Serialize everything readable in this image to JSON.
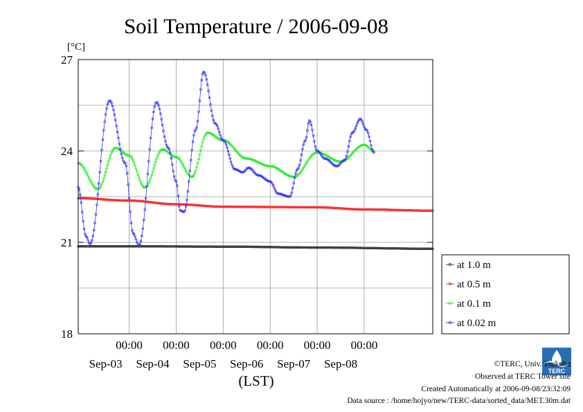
{
  "chart_data": {
    "type": "line",
    "title": "Soil Temperature / 2006-09-08",
    "ylabel": "[°C]",
    "xlabel": "(LST)",
    "ylim": [
      18,
      27
    ],
    "yticks": [
      18,
      21,
      24,
      27
    ],
    "xlim_hours": [
      -26,
      155
    ],
    "midnight_ticks": [
      {
        "hour": 0,
        "time": "00:00",
        "date": "Sep-03"
      },
      {
        "hour": 24,
        "time": "00:00",
        "date": "Sep-04"
      },
      {
        "hour": 48,
        "time": "00:00",
        "date": "Sep-05"
      },
      {
        "hour": 72,
        "time": "00:00",
        "date": "Sep-06"
      },
      {
        "hour": 96,
        "time": "00:00",
        "date": "Sep-07"
      },
      {
        "hour": 120,
        "time": "00:00",
        "date": "Sep-08"
      }
    ],
    "grid": true,
    "legend_position": "right",
    "series": [
      {
        "name": "at 1.0 m",
        "color": "#333333",
        "points": [
          [
            -26,
            20.87
          ],
          [
            0,
            20.87
          ],
          [
            48,
            20.86
          ],
          [
            96,
            20.83
          ],
          [
            155,
            20.79
          ]
        ]
      },
      {
        "name": "at 0.5 m",
        "color": "#ff2222",
        "points": [
          [
            -26,
            22.45
          ],
          [
            0,
            22.37
          ],
          [
            24,
            22.25
          ],
          [
            48,
            22.17
          ],
          [
            72,
            22.16
          ],
          [
            96,
            22.15
          ],
          [
            120,
            22.08
          ],
          [
            155,
            22.04
          ]
        ]
      },
      {
        "name": "at 0.1 m",
        "color": "#22ee22",
        "points": [
          [
            -26,
            23.6
          ],
          [
            -16,
            22.75
          ],
          [
            -7,
            24.1
          ],
          [
            0,
            23.85
          ],
          [
            8,
            22.8
          ],
          [
            17,
            24.05
          ],
          [
            24,
            23.8
          ],
          [
            32,
            23.15
          ],
          [
            40,
            24.6
          ],
          [
            48,
            24.35
          ],
          [
            60,
            23.75
          ],
          [
            72,
            23.5
          ],
          [
            84,
            23.15
          ],
          [
            96,
            23.95
          ],
          [
            108,
            23.65
          ],
          [
            120,
            24.2
          ],
          [
            125,
            24.0
          ]
        ]
      },
      {
        "name": "at 0.02 m",
        "color": "#3333ff",
        "points": [
          [
            -26,
            22.8
          ],
          [
            -22,
            21.2
          ],
          [
            -20,
            20.95
          ],
          [
            -10,
            25.65
          ],
          [
            -2,
            23.6
          ],
          [
            2,
            21.3
          ],
          [
            5,
            20.9
          ],
          [
            14,
            25.6
          ],
          [
            20,
            24.1
          ],
          [
            24,
            23.0
          ],
          [
            26,
            22.05
          ],
          [
            28,
            22.0
          ],
          [
            34,
            24.7
          ],
          [
            38,
            26.6
          ],
          [
            44,
            24.9
          ],
          [
            48,
            24.35
          ],
          [
            54,
            23.4
          ],
          [
            58,
            23.3
          ],
          [
            61,
            23.45
          ],
          [
            66,
            23.2
          ],
          [
            72,
            23.0
          ],
          [
            76,
            22.6
          ],
          [
            82,
            22.5
          ],
          [
            86,
            23.4
          ],
          [
            90,
            24.35
          ],
          [
            92,
            25.0
          ],
          [
            96,
            24.0
          ],
          [
            100,
            23.75
          ],
          [
            106,
            23.5
          ],
          [
            110,
            23.7
          ],
          [
            114,
            24.6
          ],
          [
            118,
            25.05
          ],
          [
            121,
            24.7
          ],
          [
            125,
            23.95
          ]
        ]
      }
    ]
  },
  "credits": {
    "copyright": "©TERC, Univ. Tsukuba",
    "site": "Observed at TERC Tower site",
    "created": "Created Automatically at 2006-09-08/23:32:09",
    "source": "Data source : /home/hojyo/new/TERC-data/sorted_data/MET.30m.dat"
  },
  "logo": {
    "text": "TERC",
    "color": "#2a6db3",
    "icon": "terc-logo"
  }
}
